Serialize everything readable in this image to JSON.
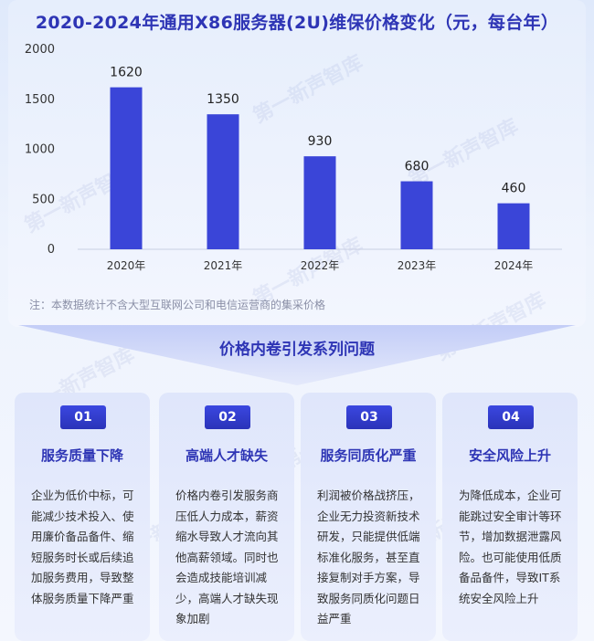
{
  "chart_data": {
    "type": "bar",
    "title": "2020-2024年通用X86服务器(2U)维保价格变化（元，每台年）",
    "categories": [
      "2020年",
      "2021年",
      "2022年",
      "2023年",
      "2024年"
    ],
    "values": [
      1620,
      1350,
      930,
      680,
      460
    ],
    "data_labels": [
      "1620",
      "1350",
      "930",
      "680",
      "460"
    ],
    "ylim": [
      0,
      2000
    ],
    "yticks": [
      "0",
      "500",
      "1000",
      "1500",
      "2000"
    ],
    "bar_color": "#3a45d8",
    "grid": false,
    "legend": "none"
  },
  "note": "注：本数据统计不含大型互联网公司和电信运营商的集采价格",
  "banner_title": "价格内卷引发系列问题",
  "watermark": "第一新声智库",
  "cards": [
    {
      "num": "01",
      "title": "服务质量下降",
      "body": "企业为低价中标，可能减少技术投入、使用廉价备品备件、缩短服务时长或后续追加服务费用，导致整体服务质量下降严重"
    },
    {
      "num": "02",
      "title": "高端人才缺失",
      "body": "价格内卷引发服务商压低人力成本，薪资缩水导致人才流向其他高薪领域。同时也会造成技能培训减少，高端人才缺失现象加剧"
    },
    {
      "num": "03",
      "title": "服务同质化严重",
      "body": "利润被价格战挤压，企业无力投资新技术研发，只能提供低端标准化服务，甚至直接复制对手方案，导致服务同质化问题日益严重"
    },
    {
      "num": "04",
      "title": "安全风险上升",
      "body": "为降低成本，企业可能跳过安全审计等环节，增加数据泄露风险。也可能使用低质备品备件，导致IT系统安全风险上升"
    }
  ]
}
